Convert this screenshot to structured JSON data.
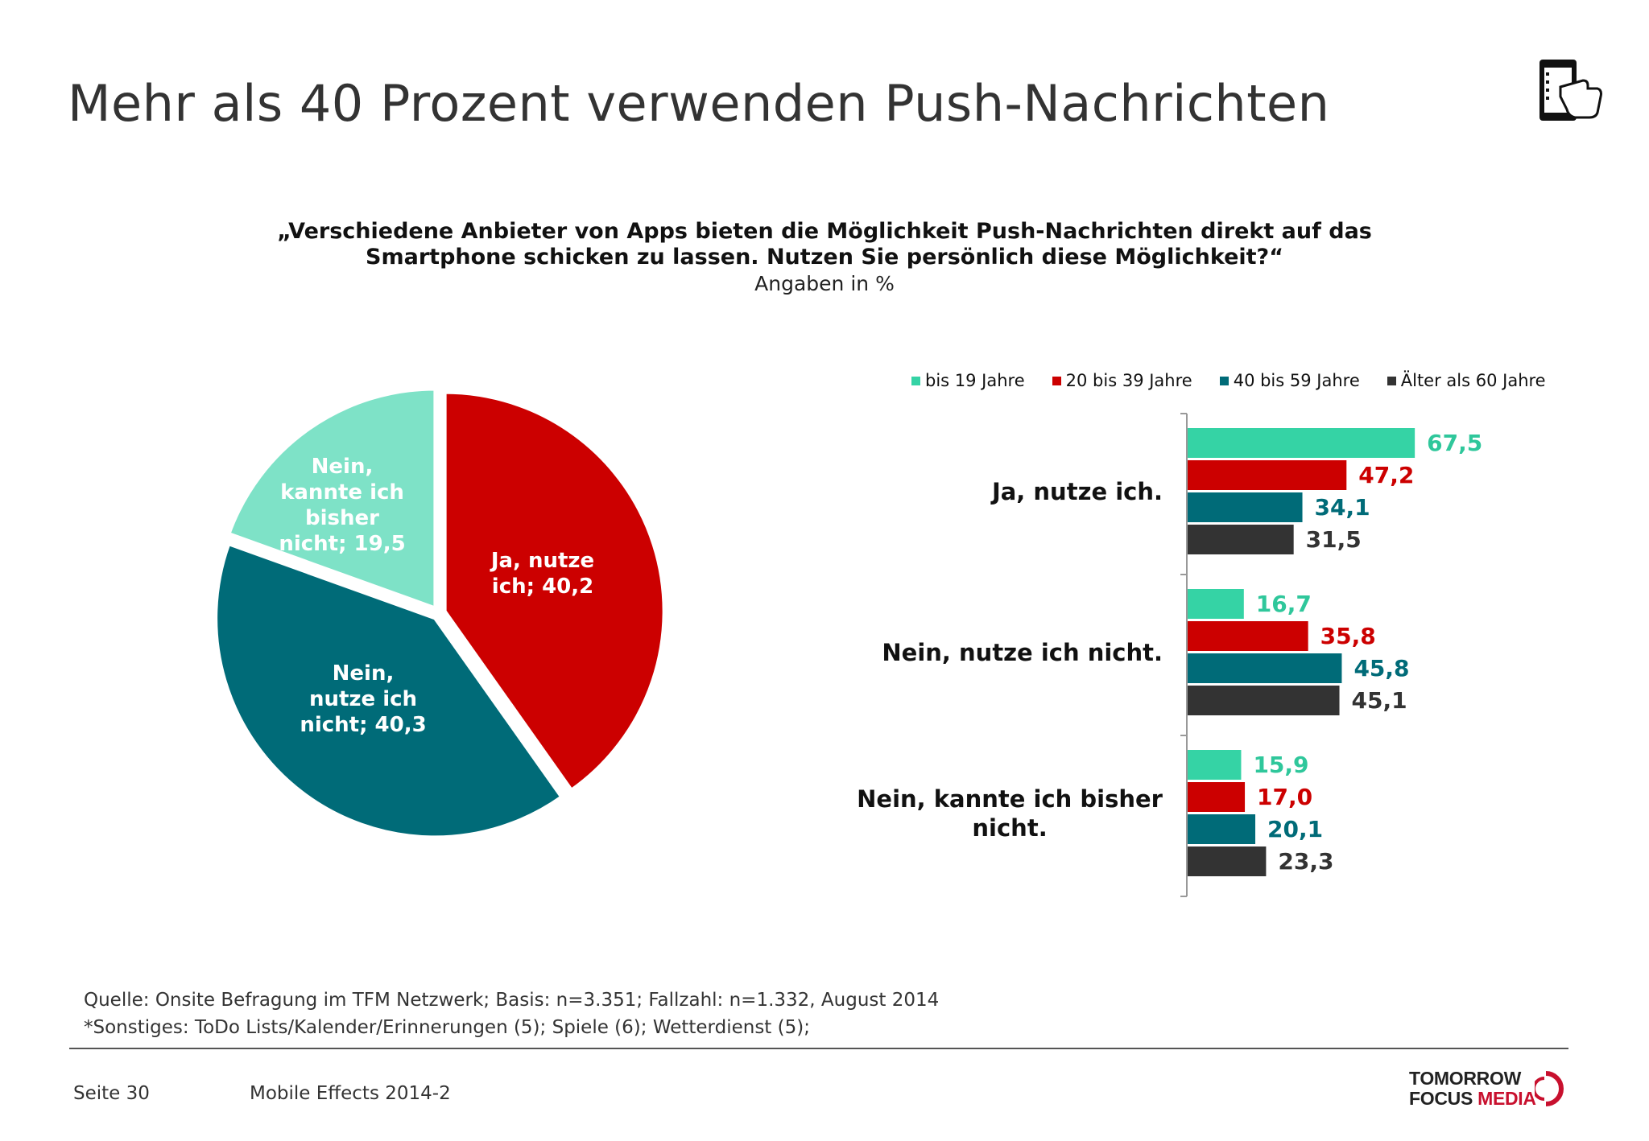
{
  "title": "Mehr als 40 Prozent verwenden Push-Nachrichten",
  "header_icon": "smartphone-touch-icon",
  "question_line1": "„Verschiedene Anbieter von Apps bieten die Möglichkeit Push-Nachrichten direkt auf das",
  "question_line2": "Smartphone schicken zu lassen. Nutzen Sie persönlich diese Möglichkeit?“",
  "subtitle": "Angaben in %",
  "chart_data": [
    {
      "type": "pie",
      "slices": [
        {
          "label_lines": [
            "Ja, nutze",
            "ich; 40,2"
          ],
          "category": "Ja, nutze ich",
          "value": 40.2,
          "color": "#cc0000"
        },
        {
          "label_lines": [
            "Nein,",
            "nutze ich",
            "nicht; 40,3"
          ],
          "category": "Nein, nutze ich nicht",
          "value": 40.3,
          "color": "#006b78"
        },
        {
          "label_lines": [
            "Nein,",
            "kannte ich",
            "bisher",
            "nicht; 19,5"
          ],
          "category": "Nein, kannte ich bisher nicht",
          "value": 19.5,
          "color": "#7ee2c7"
        }
      ]
    },
    {
      "type": "bar",
      "orientation": "horizontal",
      "categories": [
        {
          "lines": [
            "Ja, nutze ich."
          ]
        },
        {
          "lines": [
            "Nein, nutze ich nicht."
          ]
        },
        {
          "lines": [
            "Nein, kannte ich bisher",
            "nicht."
          ]
        }
      ],
      "series": [
        {
          "name": "bis 19 Jahre",
          "color": "#35d3a5",
          "values": [
            67.5,
            16.7,
            15.9
          ],
          "labels": [
            "67,5",
            "16,7",
            "15,9"
          ]
        },
        {
          "name": "20 bis 39 Jahre",
          "color": "#cc0000",
          "values": [
            47.2,
            35.8,
            17.0
          ],
          "labels": [
            "47,2",
            "35,8",
            "17,0"
          ]
        },
        {
          "name": "40 bis 59 Jahre",
          "color": "#006b78",
          "values": [
            34.1,
            45.8,
            20.1
          ],
          "labels": [
            "34,1",
            "45,8",
            "20,1"
          ]
        },
        {
          "name": "Älter als 60 Jahre",
          "color": "#333333",
          "values": [
            31.5,
            45.1,
            23.3
          ],
          "labels": [
            "31,5",
            "45,1",
            "23,3"
          ]
        }
      ],
      "xlim": [
        0,
        100
      ],
      "legend_position": "top",
      "grid": false
    }
  ],
  "source_line": "Quelle: Onsite Befragung im TFM Netzwerk; Basis: n=3.351; Fallzahl: n=1.332, August 2014",
  "note_line": "*Sonstiges: ToDo Lists/Kalender/Erinnerungen (5); Spiele (6); Wetterdienst (5);",
  "page_label": "Seite 30",
  "report_label": "Mobile Effects 2014-2",
  "logo": {
    "line1": "TOMORROW",
    "line2a": "FOCUS ",
    "line2b": "MEDIA"
  }
}
